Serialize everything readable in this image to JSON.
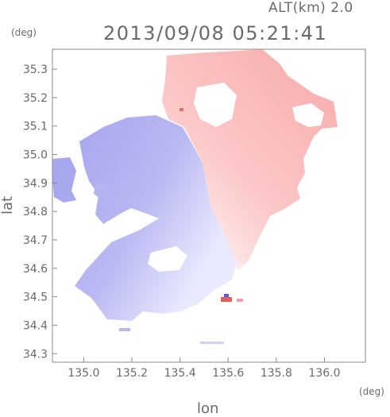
{
  "header": {
    "altitude_label": "ALT(km) 2.0",
    "datetime": "2013/09/08 05:21:41"
  },
  "axes": {
    "y_unit": "(deg)",
    "x_unit": "(deg)",
    "xlabel": "lon",
    "ylabel": "lat",
    "xlim": [
      134.87,
      136.17
    ],
    "ylim": [
      34.27,
      35.37
    ],
    "x_ticks": [
      "135.0",
      "135.2",
      "135.4",
      "135.6",
      "135.8",
      "136.0"
    ],
    "y_ticks": [
      "34.3",
      "34.4",
      "34.5",
      "34.6",
      "34.7",
      "34.8",
      "34.9",
      "35.0",
      "35.1",
      "35.2",
      "35.3"
    ]
  },
  "colors": {
    "approaching": "#aaaaf0",
    "receding": "#f5aaaa",
    "axis": "#888888"
  }
}
